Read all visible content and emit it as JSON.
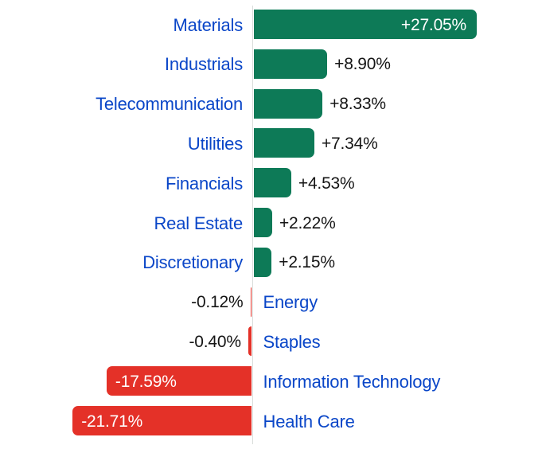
{
  "chart_data": {
    "type": "bar",
    "orientation": "horizontal",
    "title": "",
    "xlabel": "",
    "ylabel": "",
    "categories": [
      "Materials",
      "Industrials",
      "Telecommunication",
      "Utilities",
      "Financials",
      "Real Estate",
      "Discretionary",
      "Energy",
      "Staples",
      "Information Technology",
      "Health Care"
    ],
    "values": [
      27.05,
      8.9,
      8.33,
      7.34,
      4.53,
      2.22,
      2.15,
      -0.12,
      -0.4,
      -17.59,
      -21.71
    ],
    "value_labels": [
      "+27.05%",
      "+8.90%",
      "+8.33%",
      "+7.34%",
      "+4.53%",
      "+2.22%",
      "+2.15%",
      "-0.12%",
      "-0.40%",
      "-17.59%",
      "-21.71%"
    ],
    "unit": "%",
    "baseline_value": 0,
    "gridlines": false,
    "legend": false,
    "layout_hints": {
      "positive_bars_extend": "right",
      "negative_bars_extend": "left",
      "category_labels_positive_side": "left-of-axis",
      "category_labels_negative_side": "right-of-axis",
      "large_bar_value_labels": "inside-bar-white",
      "small_bar_value_labels": "outside-bar-black"
    },
    "colors": {
      "positive_bar": "#0d7a57",
      "negative_bar": "#e43128",
      "category_label": "#0a46c8",
      "value_label_outside": "#151515",
      "value_label_inside": "#ffffff",
      "axis_line": "#d9ddda",
      "background": "#ffffff"
    }
  }
}
